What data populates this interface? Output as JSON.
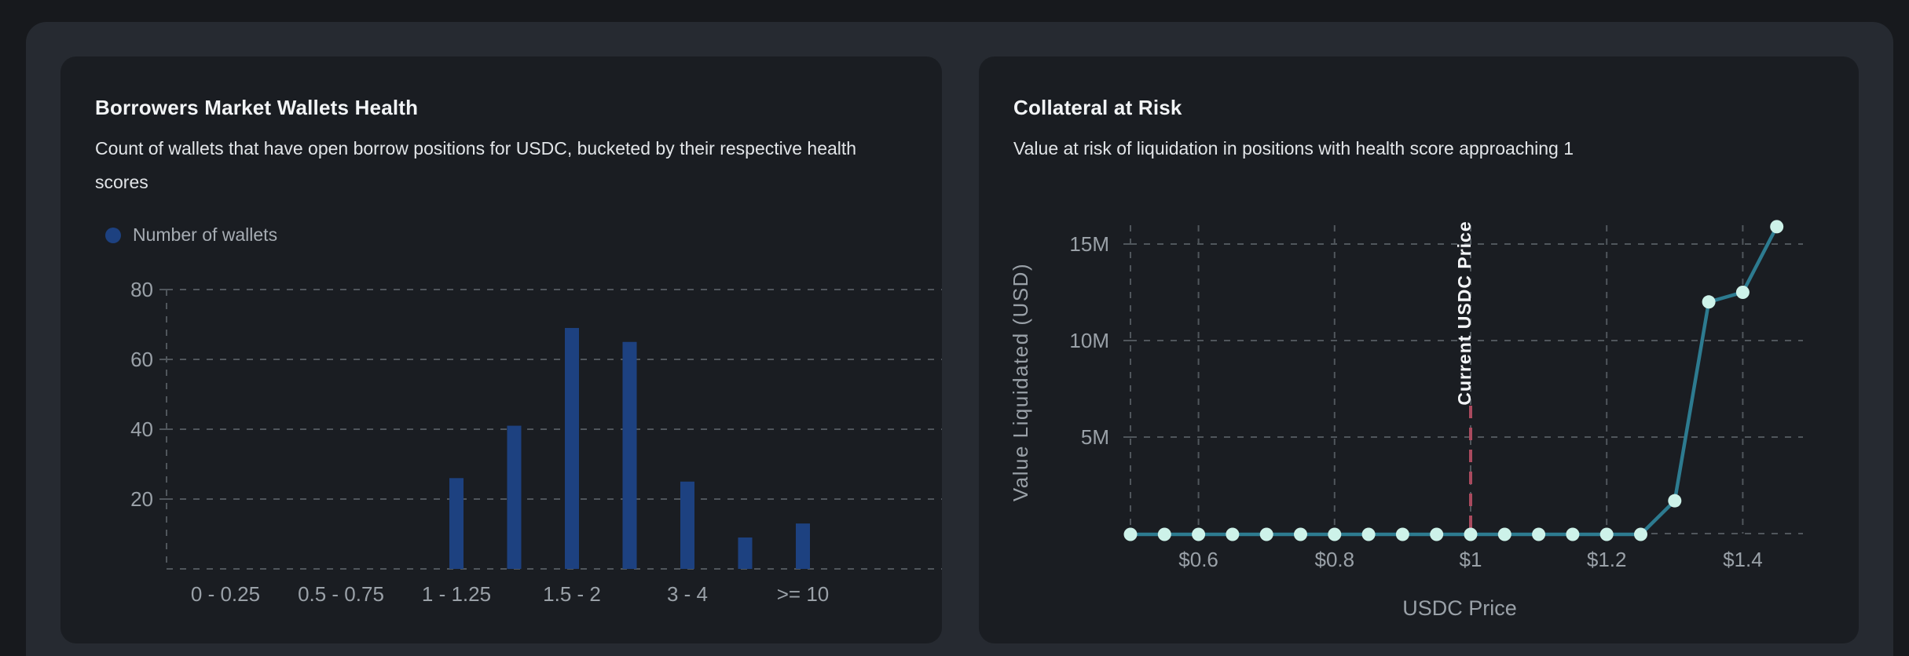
{
  "theme": {
    "page_bg": "#17191d",
    "container_bg": "#262a31",
    "card_bg": "#1a1d22",
    "title_color": "#f2f4f6",
    "subtitle_color": "#e2e5e8",
    "axis_text_color": "#9aa1a8",
    "gridline_color": "#50565c",
    "bar_color": "#1d4180",
    "line_color": "#2d7b90",
    "marker_color": "#cdf2e9",
    "current_price_line_color": "#aa4a5e",
    "annotation_text_color": "#f4f6f8"
  },
  "cards": [
    {
      "title": "Borrowers Market Wallets Health",
      "subtitle": "Count of wallets that have open borrow positions for USDC, bucketed by their respective health scores",
      "legend": {
        "label": "Number of wallets",
        "color": "#1d4180"
      }
    },
    {
      "title": "Collateral at Risk",
      "subtitle": "Value at risk of liquidation in positions with health score approaching 1"
    }
  ],
  "chart_data": [
    {
      "type": "bar",
      "title": "Borrowers Market Wallets Health",
      "series_name": "Number of wallets",
      "n_buckets": 11,
      "values": [
        0,
        0,
        0,
        0,
        26,
        41,
        69,
        65,
        25,
        9,
        13
      ],
      "xtick_labels": [
        "0 - 0.25",
        "0.5 - 0.75",
        "1 - 1.25",
        "1.5 - 2",
        "3 - 4",
        ">= 10"
      ],
      "xtick_bucket_positions": [
        0,
        2,
        4,
        6,
        8,
        10
      ],
      "yticks": [
        20,
        40,
        60,
        80
      ],
      "ylim": [
        0,
        80
      ],
      "grid": "dashed horizontal + left edge vertical",
      "legend_position": "top-left above plot"
    },
    {
      "type": "line",
      "title": "Collateral at Risk",
      "xlabel": "USDC Price",
      "ylabel": "Value Liquidated (USD)",
      "x": [
        0.5,
        0.55,
        0.6,
        0.65,
        0.7,
        0.75,
        0.8,
        0.85,
        0.9,
        0.95,
        1.0,
        1.05,
        1.1,
        1.15,
        1.2,
        1.25,
        1.3,
        1.35,
        1.4,
        1.45
      ],
      "y_usd_millions": [
        0,
        0,
        0,
        0,
        0,
        0,
        0,
        0,
        0,
        0,
        0,
        0,
        0,
        0,
        0,
        0,
        1.7,
        12.0,
        12.5,
        15.9
      ],
      "xticks": [
        {
          "label": "$0.6",
          "value": 0.6
        },
        {
          "label": "$0.8",
          "value": 0.8
        },
        {
          "label": "$1",
          "value": 1.0
        },
        {
          "label": "$1.2",
          "value": 1.2
        },
        {
          "label": "$1.4",
          "value": 1.4
        }
      ],
      "extra_vertical_gridlines": [
        0.5
      ],
      "yticks": [
        {
          "label": "5M",
          "value": 5
        },
        {
          "label": "10M",
          "value": 10
        },
        {
          "label": "15M",
          "value": 15
        }
      ],
      "ylim_millions": [
        0,
        16
      ],
      "grid": "dashed",
      "annotation": {
        "label": "Current USDC Price",
        "x": 1.0
      }
    }
  ]
}
